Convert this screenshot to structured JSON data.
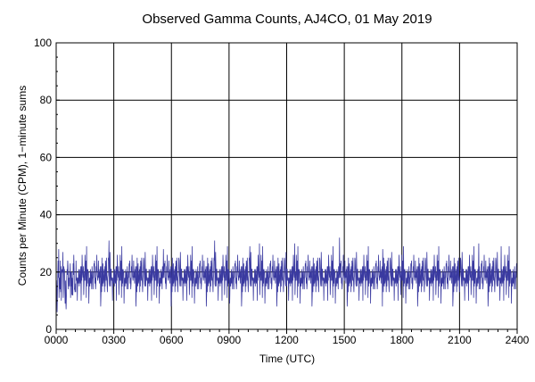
{
  "chart_data": {
    "type": "line",
    "title": "Observed Gamma Counts, AJ4CO, 01 May 2019",
    "xlabel": "Time (UTC)",
    "ylabel": "Counts per Minute (CPM), 1−minute sums",
    "xlim": [
      0,
      1440
    ],
    "ylim": [
      0,
      100
    ],
    "x_ticks": [
      "0000",
      "0300",
      "0600",
      "0900",
      "1200",
      "1500",
      "1800",
      "2100",
      "2400"
    ],
    "y_ticks": [
      "0",
      "20",
      "40",
      "60",
      "80",
      "100"
    ],
    "grid": true,
    "series": [
      {
        "name": "",
        "color": "#3a3aa0",
        "sampling": "1-minute sums, x = minutes since 0000 UTC",
        "approx_mean": 17,
        "approx_min": 5,
        "approx_max": 32,
        "notable_peaks": [
          {
            "time": "0008",
            "value": 28
          },
          {
            "time": "0245",
            "value": 31
          },
          {
            "time": "0535",
            "value": 28
          },
          {
            "time": "0815",
            "value": 31
          },
          {
            "time": "1005",
            "value": 29
          },
          {
            "time": "1035",
            "value": 30
          },
          {
            "time": "1225",
            "value": 30
          },
          {
            "time": "1445",
            "value": 32
          },
          {
            "time": "1700",
            "value": 28
          },
          {
            "time": "2200",
            "value": 30
          },
          {
            "time": "2310",
            "value": 29
          }
        ]
      }
    ]
  }
}
